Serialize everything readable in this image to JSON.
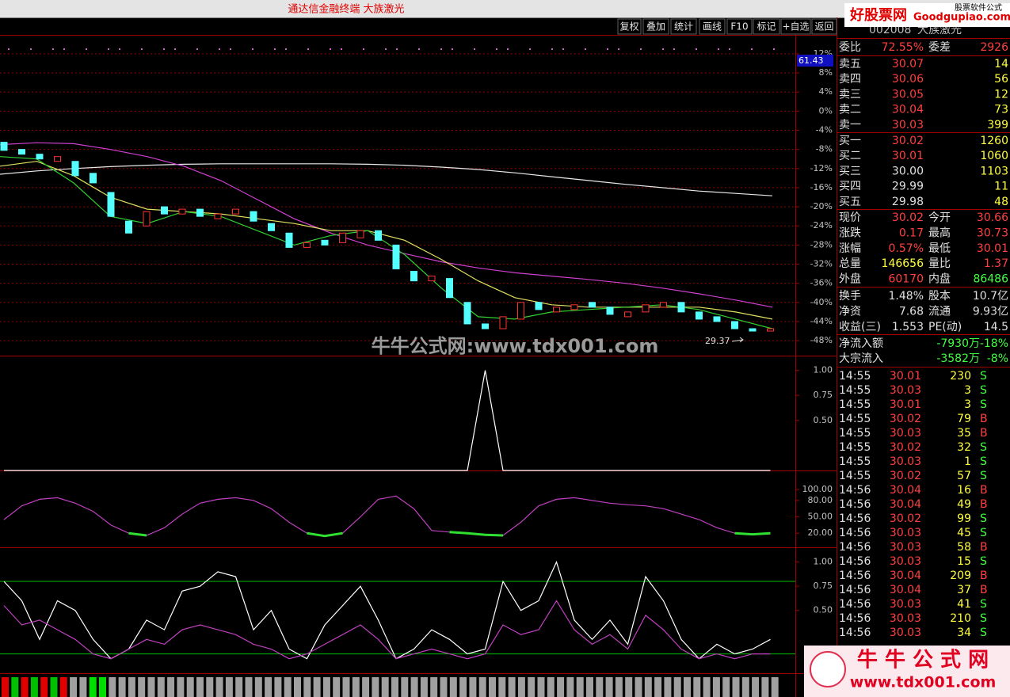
{
  "window_title": "通达信金融终端 大族激光",
  "toolbar": [
    "复权",
    "叠加",
    "统计",
    "画线",
    "F10",
    "标记",
    "+自选",
    "返回"
  ],
  "stock": {
    "code": "002008",
    "name": "大族激光"
  },
  "watermarks": {
    "top_right": "好股票网",
    "top_right_en": "Goodgupiao.com",
    "top_right_sub": "股票软件公式",
    "center": "牛牛公式网:www.tdx001.com",
    "logo": "牛 牛 公 式 网",
    "logo_url": "www.tdx001.com"
  },
  "chart_data": [
    {
      "type": "candlestick",
      "price_tag": "61.43",
      "low_label": "29.37",
      "grid": true,
      "ylim": [
        -51.3,
        15.8
      ],
      "yticks": [
        {
          "value": 12,
          "label": "12%"
        },
        {
          "value": 8,
          "label": "8%"
        },
        {
          "value": 4,
          "label": "4%"
        },
        {
          "value": 0,
          "label": "0%"
        },
        {
          "value": -4,
          "label": "-4%"
        },
        {
          "value": -8,
          "label": "-8%"
        },
        {
          "value": -12,
          "label": "-12%"
        },
        {
          "value": -16,
          "label": "-16%"
        },
        {
          "value": -20,
          "label": "-20%"
        },
        {
          "value": -24,
          "label": "-24%"
        },
        {
          "value": -28,
          "label": "-28%"
        },
        {
          "value": -32,
          "label": "-32%"
        },
        {
          "value": -36,
          "label": "-36%"
        },
        {
          "value": -40,
          "label": "-40%"
        },
        {
          "value": -44,
          "label": "-44%"
        },
        {
          "value": -48,
          "label": "-48%"
        }
      ],
      "up_color": "#ff3232",
      "down_color": "#54ffff",
      "open": [
        -6.5,
        -8.0,
        -9.0,
        -10.5,
        -10.5,
        -13.0,
        -17.0,
        -23.0,
        -24.0,
        -20.0,
        -21.5,
        -20.5,
        -22.5,
        -21.5,
        -21.0,
        -23.5,
        -25.5,
        -28.5,
        -27.0,
        -27.5,
        -26.5,
        -25.0,
        -28.0,
        -33.5,
        -35.5,
        -35.0,
        -40.0,
        -44.5,
        -45.5,
        -43.5,
        -40.0,
        -42.0,
        -41.5,
        -40.0,
        -41.0,
        -43.0,
        -42.0,
        -41.0,
        -40.0,
        -42.0,
        -43.0,
        -44.0,
        -45.5,
        -46.0
      ],
      "close": [
        -8.2,
        -9.0,
        -10.0,
        -9.5,
        -13.5,
        -15.0,
        -22.0,
        -25.5,
        -21.0,
        -21.5,
        -20.5,
        -22.0,
        -21.5,
        -20.5,
        -23.0,
        -25.0,
        -28.5,
        -27.5,
        -28.0,
        -25.5,
        -25.0,
        -27.0,
        -33.0,
        -35.5,
        -34.5,
        -39.0,
        -44.5,
        -45.5,
        -43.0,
        -40.0,
        -41.5,
        -41.0,
        -40.5,
        -41.0,
        -42.5,
        -42.0,
        -40.5,
        -40.0,
        -42.0,
        -43.5,
        -44.0,
        -45.5,
        -46.0,
        -45.5
      ],
      "series": [
        {
          "color": "#e8e8e8",
          "values": [
            -13.2,
            -12.5,
            -12.0,
            -11.6,
            -11.3,
            -11.1,
            -11.0,
            -11.0,
            -11.0,
            -11.0,
            -11.1,
            -11.3,
            -11.7,
            -12.2,
            -12.9,
            -13.7,
            -14.5,
            -15.3,
            -16.0,
            -16.7,
            -17.2,
            -17.7
          ]
        },
        {
          "color": "#d040d0",
          "values": [
            -7.0,
            -6.6,
            -6.8,
            -8.0,
            -9.5,
            -11.5,
            -14.5,
            -18.5,
            -22.5,
            -25.5,
            -28.0,
            -29.8,
            -31.5,
            -32.8,
            -33.8,
            -34.5,
            -35.2,
            -36.0,
            -37.0,
            -38.2,
            -39.5,
            -41.0
          ]
        },
        {
          "color": "#e0e060",
          "values": [
            -11.5,
            -10.5,
            -13.5,
            -18.0,
            -20.5,
            -21.0,
            -21.5,
            -22.5,
            -23.5,
            -25.0,
            -25.0,
            -27.0,
            -31.0,
            -35.5,
            -39.0,
            -40.5,
            -41.0,
            -41.0,
            -41.0,
            -41.0,
            -42.0,
            -43.5
          ]
        },
        {
          "color": "#30d030",
          "values": [
            -9.5,
            -10.0,
            -15.0,
            -22.0,
            -23.5,
            -21.0,
            -22.0,
            -25.0,
            -28.0,
            -26.0,
            -25.0,
            -30.0,
            -37.0,
            -43.0,
            -43.5,
            -42.0,
            -41.5,
            -41.0,
            -40.5,
            -41.5,
            -43.5,
            -45.5
          ]
        }
      ]
    },
    {
      "type": "line",
      "ylim": [
        0,
        1.1
      ],
      "yticks": [
        {
          "value": 1,
          "label": "1.00"
        },
        {
          "value": 0.75,
          "label": "0.75"
        },
        {
          "value": 0.5,
          "label": "0.50"
        }
      ],
      "series": [
        {
          "color": "#ffffff",
          "values": [
            0,
            0,
            0,
            0,
            0,
            0,
            0,
            0,
            0,
            0,
            0,
            0,
            0,
            0,
            0,
            0,
            0,
            0,
            0,
            0,
            0,
            0,
            0,
            0,
            0,
            0,
            0,
            1,
            0,
            0,
            0,
            0,
            0,
            0,
            0,
            0,
            0,
            0,
            0,
            0,
            0,
            0,
            0,
            0
          ]
        }
      ]
    },
    {
      "type": "line",
      "ylim": [
        0,
        129
      ],
      "yticks": [
        {
          "value": 100,
          "label": "100.00"
        },
        {
          "value": 80,
          "label": "80.00"
        },
        {
          "value": 50,
          "label": "50.00"
        },
        {
          "value": 20,
          "label": "20.00"
        }
      ],
      "series": [
        {
          "color": "#c040c0",
          "values": [
            45,
            70,
            82,
            85,
            75,
            60,
            35,
            20,
            16,
            30,
            55,
            75,
            82,
            85,
            80,
            65,
            40,
            20,
            15,
            20,
            50,
            82,
            88,
            65,
            25,
            22,
            20,
            17,
            16,
            40,
            70,
            82,
            85,
            80,
            75,
            72,
            70,
            65,
            55,
            45,
            30,
            20,
            18,
            20
          ]
        },
        {
          "color": "#30e030",
          "values": [
            null,
            null,
            null,
            null,
            null,
            null,
            null,
            20,
            16,
            null,
            null,
            null,
            null,
            null,
            null,
            null,
            null,
            20,
            15,
            20,
            null,
            null,
            null,
            null,
            null,
            22,
            20,
            17,
            16,
            null,
            null,
            null,
            null,
            null,
            null,
            null,
            null,
            null,
            null,
            null,
            null,
            20,
            18,
            20
          ]
        }
      ]
    },
    {
      "type": "line",
      "ylim": [
        -0.15,
        1.12
      ],
      "yticks": [
        {
          "value": 1,
          "label": "1.00"
        },
        {
          "value": 0.75,
          "label": "0.75"
        },
        {
          "value": 0.5,
          "label": "0.50"
        }
      ],
      "reference_lines": [
        {
          "value": 0.8,
          "color": "#00c000"
        },
        {
          "value": 0.05,
          "color": "#00c000"
        }
      ],
      "series": [
        {
          "color": "#ffffff",
          "values": [
            0.8,
            0.6,
            0.2,
            0.6,
            0.5,
            0.2,
            0.0,
            0.1,
            0.4,
            0.3,
            0.7,
            0.75,
            0.9,
            0.85,
            0.3,
            0.5,
            0.1,
            0.0,
            0.35,
            0.55,
            0.75,
            0.4,
            0.0,
            0.1,
            0.3,
            0.2,
            0.05,
            0.1,
            0.8,
            0.5,
            0.6,
            1.0,
            0.4,
            0.2,
            0.4,
            0.15,
            0.85,
            0.6,
            0.2,
            0.0,
            0.15,
            0.05,
            0.1,
            0.2
          ]
        },
        {
          "color": "#c040c0",
          "values": [
            0.55,
            0.35,
            0.4,
            0.3,
            0.2,
            0.05,
            0.0,
            0.1,
            0.2,
            0.15,
            0.3,
            0.35,
            0.3,
            0.25,
            0.15,
            0.1,
            0.0,
            0.05,
            0.15,
            0.25,
            0.35,
            0.2,
            0.0,
            0.05,
            0.1,
            0.05,
            0.0,
            0.05,
            0.35,
            0.25,
            0.3,
            0.6,
            0.3,
            0.15,
            0.25,
            0.1,
            0.45,
            0.3,
            0.1,
            0.0,
            0.05,
            0.0,
            0.05,
            0.05
          ]
        }
      ]
    }
  ],
  "quote": {
    "summary": [
      [
        "委比",
        "72.55%",
        "委差",
        "2926"
      ]
    ],
    "book": [
      [
        "卖五",
        "30.07",
        "14"
      ],
      [
        "卖四",
        "30.06",
        "56"
      ],
      [
        "卖三",
        "30.05",
        "12"
      ],
      [
        "卖二",
        "30.04",
        "73"
      ],
      [
        "卖一",
        "30.03",
        "399"
      ],
      [
        "买一",
        "30.02",
        "1260"
      ],
      [
        "买二",
        "30.01",
        "1060"
      ],
      [
        "买三",
        "30.00",
        "1103"
      ],
      [
        "买四",
        "29.99",
        "11"
      ],
      [
        "买五",
        "29.98",
        "48"
      ]
    ],
    "stats": [
      [
        "现价",
        "30.02",
        "今开",
        "30.66"
      ],
      [
        "涨跌",
        "0.17",
        "最高",
        "30.73"
      ],
      [
        "涨幅",
        "0.57%",
        "最低",
        "30.01"
      ],
      [
        "总量",
        "146656",
        "量比",
        "1.37"
      ],
      [
        "外盘",
        "60170",
        "内盘",
        "86486"
      ],
      [
        "换手",
        "1.48%",
        "股本",
        "10.7亿"
      ],
      [
        "净资",
        "7.68",
        "流通",
        "9.93亿"
      ],
      [
        "收益(三)",
        "1.553",
        "PE(动)",
        "14.5"
      ]
    ],
    "flows": [
      [
        "净流入额",
        "-7930万",
        "-18%"
      ],
      [
        "大宗流入",
        "-3582万",
        "-8%"
      ]
    ]
  },
  "trades": [
    [
      "14:55",
      "30.01",
      "230",
      "S"
    ],
    [
      "14:55",
      "30.03",
      "3",
      "S"
    ],
    [
      "14:55",
      "30.01",
      "3",
      "S"
    ],
    [
      "14:55",
      "30.02",
      "79",
      "B"
    ],
    [
      "14:55",
      "30.03",
      "35",
      "B"
    ],
    [
      "14:55",
      "30.02",
      "32",
      "S"
    ],
    [
      "14:55",
      "30.03",
      "1",
      "S"
    ],
    [
      "14:55",
      "30.02",
      "57",
      "S"
    ],
    [
      "14:56",
      "30.04",
      "16",
      "B"
    ],
    [
      "14:56",
      "30.04",
      "49",
      "B"
    ],
    [
      "14:56",
      "30.02",
      "99",
      "S"
    ],
    [
      "14:56",
      "30.03",
      "45",
      "S"
    ],
    [
      "14:56",
      "30.03",
      "58",
      "B"
    ],
    [
      "14:56",
      "30.03",
      "15",
      "S"
    ],
    [
      "14:56",
      "30.04",
      "209",
      "B"
    ],
    [
      "14:56",
      "30.04",
      "37",
      "B"
    ],
    [
      "14:56",
      "30.03",
      "41",
      "S"
    ],
    [
      "14:56",
      "30.03",
      "210",
      "S"
    ],
    [
      "14:56",
      "30.03",
      "34",
      "S"
    ]
  ]
}
